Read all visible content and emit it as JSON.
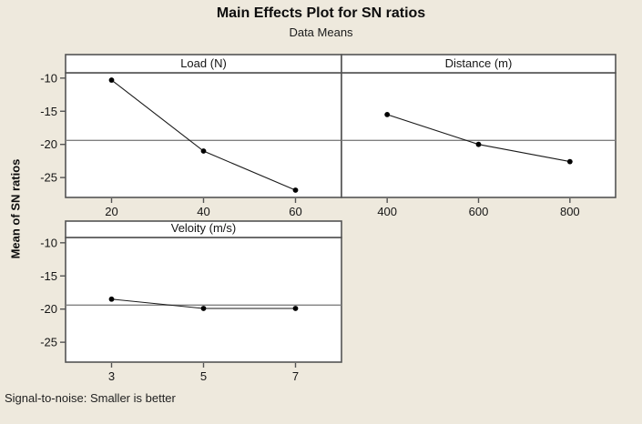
{
  "chart_data": {
    "type": "line",
    "title": "Main Effects Plot for SN ratios",
    "subtitle": "Data Means",
    "ylabel": "Mean of SN ratios",
    "footnote": "Signal-to-noise: Smaller is better",
    "ylim": [
      -28.0,
      -9.2
    ],
    "yticks": [
      -10,
      -15,
      -20,
      -25
    ],
    "grand_mean_reference": -19.4,
    "grid": "horizontal-mean-reference-line-only",
    "legend": "none",
    "panels": [
      {
        "label": "Load (N)",
        "categories": [
          "20",
          "40",
          "60"
        ],
        "values": [
          -10.3,
          -21.0,
          -26.9
        ],
        "row": 0,
        "col": 0,
        "show_y_ticks": true
      },
      {
        "label": "Distance (m)",
        "categories": [
          "400",
          "600",
          "800"
        ],
        "values": [
          -15.5,
          -20.0,
          -22.6
        ],
        "row": 0,
        "col": 1,
        "show_y_ticks": false
      },
      {
        "label": "Veloity (m/s)",
        "categories": [
          "3",
          "5",
          "7"
        ],
        "values": [
          -18.5,
          -19.9,
          -19.9
        ],
        "row": 1,
        "col": 0,
        "show_y_ticks": true
      }
    ],
    "colors": {
      "page_background": "#EEE9DD",
      "plot_background": "#FFFFFF",
      "panel_border": "#545454",
      "reference_line": "#808080",
      "series_line": "#1a1a1a",
      "marker": "#000000",
      "text": "#151515"
    }
  }
}
